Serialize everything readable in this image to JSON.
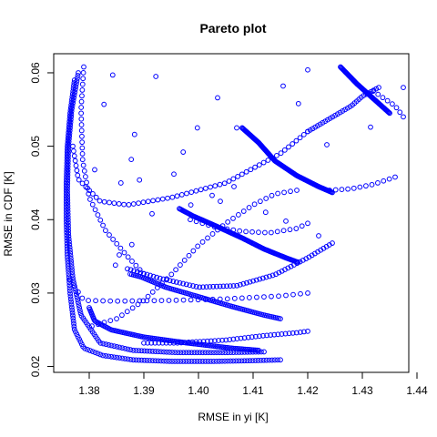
{
  "chart_data": {
    "type": "scatter",
    "title": "Pareto plot",
    "xlabel": "RMSE in yi [K]",
    "ylabel": "RMSE in CDF [K]",
    "xlim": [
      1.3735,
      1.4385
    ],
    "ylim": [
      0.0192,
      0.0626
    ],
    "xticks": [
      1.38,
      1.39,
      1.4,
      1.41,
      1.42,
      1.43,
      1.44
    ],
    "yticks": [
      0.02,
      0.03,
      0.04,
      0.05,
      0.06
    ],
    "xtick_labels": [
      "1.38",
      "1.39",
      "1.40",
      "1.41",
      "1.42",
      "1.43",
      "1.44"
    ],
    "ytick_labels": [
      "0.02",
      "0.03",
      "0.04",
      "0.05",
      "0.06"
    ],
    "grid": false,
    "marker": "open-circle",
    "point_color": "#0000ff",
    "curves": [
      {
        "x": [
          1.3773,
          1.3765,
          1.376,
          1.3758,
          1.3758,
          1.376,
          1.3765,
          1.3773,
          1.379,
          1.3825,
          1.388,
          1.395,
          1.403,
          1.41,
          1.415
        ],
        "y": [
          0.059,
          0.0545,
          0.05,
          0.045,
          0.04,
          0.035,
          0.03,
          0.025,
          0.0225,
          0.0215,
          0.0209,
          0.0207,
          0.0207,
          0.0208,
          0.0209
        ],
        "n": 170
      },
      {
        "x": [
          1.378,
          1.3768,
          1.3762,
          1.376,
          1.3762,
          1.377,
          1.3785,
          1.382,
          1.388,
          1.396,
          1.405,
          1.412
        ],
        "y": [
          0.06,
          0.055,
          0.05,
          0.044,
          0.038,
          0.032,
          0.027,
          0.0232,
          0.0222,
          0.0219,
          0.0219,
          0.022
        ],
        "n": 160
      },
      {
        "x": [
          1.379,
          1.3785,
          1.3788,
          1.38,
          1.383,
          1.387,
          1.39
        ],
        "y": [
          0.0608,
          0.055,
          0.048,
          0.043,
          0.0385,
          0.035,
          0.0326
        ],
        "n": 40
      },
      {
        "x": [
          1.3875,
          1.3895,
          1.394,
          1.4,
          1.406,
          1.412,
          1.415
        ],
        "y": [
          0.0326,
          0.0322,
          0.0308,
          0.0295,
          0.0282,
          0.027,
          0.0265
        ],
        "n": 90
      },
      {
        "x": [
          1.38,
          1.381,
          1.384,
          1.39,
          1.398,
          1.406,
          1.411
        ],
        "y": [
          0.028,
          0.0262,
          0.025,
          0.024,
          0.0232,
          0.0225,
          0.0222
        ],
        "n": 110
      },
      {
        "x": [
          1.3765,
          1.379,
          1.385,
          1.395,
          1.405,
          1.415,
          1.42
        ],
        "y": [
          0.0318,
          0.029,
          0.0289,
          0.029,
          0.0292,
          0.0296,
          0.03
        ],
        "n": 35
      },
      {
        "x": [
          1.377,
          1.378,
          1.382,
          1.387,
          1.395,
          1.405,
          1.415,
          1.42
        ],
        "y": [
          0.05,
          0.0455,
          0.0425,
          0.042,
          0.043,
          0.045,
          0.049,
          0.052
        ],
        "n": 60
      },
      {
        "x": [
          1.42,
          1.428,
          1.43,
          1.433
        ],
        "y": [
          0.052,
          0.0555,
          0.0568,
          0.058
        ],
        "n": 30
      },
      {
        "x": [
          1.426,
          1.429,
          1.432,
          1.435
        ],
        "y": [
          0.0608,
          0.0585,
          0.0565,
          0.0545
        ],
        "n": 70
      },
      {
        "x": [
          1.432,
          1.436,
          1.4375
        ],
        "y": [
          0.0575,
          0.0555,
          0.054
        ],
        "n": 8
      },
      {
        "x": [
          1.408,
          1.411,
          1.414,
          1.418,
          1.422,
          1.4245
        ],
        "y": [
          0.0525,
          0.0505,
          0.048,
          0.046,
          0.0445,
          0.0437
        ],
        "n": 120
      },
      {
        "x": [
          1.424,
          1.428,
          1.432,
          1.436
        ],
        "y": [
          0.044,
          0.0442,
          0.0448,
          0.0458
        ],
        "n": 12
      },
      {
        "x": [
          1.3965,
          1.399,
          1.403,
          1.408,
          1.412,
          1.416,
          1.4182
        ],
        "y": [
          0.0415,
          0.0405,
          0.0392,
          0.0375,
          0.036,
          0.0348,
          0.0342
        ],
        "n": 110
      },
      {
        "x": [
          1.3985,
          1.403,
          1.408,
          1.413,
          1.418,
          1.42
        ],
        "y": [
          0.04,
          0.039,
          0.0384,
          0.0382,
          0.0388,
          0.0395
        ],
        "n": 20
      },
      {
        "x": [
          1.387,
          1.393,
          1.4,
          1.407,
          1.414,
          1.42,
          1.4245
        ],
        "y": [
          0.0333,
          0.032,
          0.0308,
          0.031,
          0.0325,
          0.0348,
          0.0368
        ],
        "n": 65
      },
      {
        "x": [
          1.3805,
          1.385,
          1.39,
          1.395,
          1.4,
          1.405,
          1.41,
          1.414,
          1.418
        ],
        "y": [
          0.0255,
          0.0265,
          0.029,
          0.0325,
          0.0365,
          0.0395,
          0.042,
          0.0435,
          0.044
        ],
        "n": 40
      },
      {
        "x": [
          1.39,
          1.396,
          1.405,
          1.412,
          1.418,
          1.42
        ],
        "y": [
          0.0232,
          0.0232,
          0.0236,
          0.0242,
          0.0246,
          0.0248
        ],
        "n": 45
      }
    ],
    "scattered_points": [
      {
        "x": 1.3843,
        "y": 0.0597
      },
      {
        "x": 1.3922,
        "y": 0.0595
      },
      {
        "x": 1.3827,
        "y": 0.0557
      },
      {
        "x": 1.4035,
        "y": 0.0566
      },
      {
        "x": 1.4155,
        "y": 0.0582
      },
      {
        "x": 1.42,
        "y": 0.0604
      },
      {
        "x": 1.3883,
        "y": 0.0516
      },
      {
        "x": 1.3998,
        "y": 0.0525
      },
      {
        "x": 1.407,
        "y": 0.0525
      },
      {
        "x": 1.4183,
        "y": 0.0558
      },
      {
        "x": 1.4235,
        "y": 0.0502
      },
      {
        "x": 1.4315,
        "y": 0.0526
      },
      {
        "x": 1.4375,
        "y": 0.058
      },
      {
        "x": 1.3972,
        "y": 0.0492
      },
      {
        "x": 1.3892,
        "y": 0.0454
      },
      {
        "x": 1.3877,
        "y": 0.0482
      },
      {
        "x": 1.3955,
        "y": 0.0462
      },
      {
        "x": 1.381,
        "y": 0.0468
      },
      {
        "x": 1.3858,
        "y": 0.045
      },
      {
        "x": 1.4065,
        "y": 0.0445
      },
      {
        "x": 1.4123,
        "y": 0.041
      },
      {
        "x": 1.404,
        "y": 0.0425
      },
      {
        "x": 1.3915,
        "y": 0.0408
      },
      {
        "x": 1.3878,
        "y": 0.0366
      },
      {
        "x": 1.3855,
        "y": 0.0352
      },
      {
        "x": 1.3848,
        "y": 0.0338
      },
      {
        "x": 1.3986,
        "y": 0.042
      },
      {
        "x": 1.4025,
        "y": 0.0433
      },
      {
        "x": 1.416,
        "y": 0.0398
      },
      {
        "x": 1.422,
        "y": 0.0378
      }
    ]
  }
}
